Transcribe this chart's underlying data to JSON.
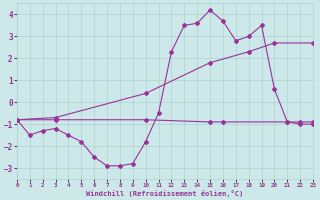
{
  "xlabel": "Windchill (Refroidissement éolien,°C)",
  "background_color": "#cce8e8",
  "grid_color": "#b0d0d0",
  "line_color": "#993399",
  "xlim": [
    0,
    23
  ],
  "ylim": [
    -3.5,
    4.5
  ],
  "yticks": [
    -3,
    -2,
    -1,
    0,
    1,
    2,
    3,
    4
  ],
  "xticks": [
    0,
    1,
    2,
    3,
    4,
    5,
    6,
    7,
    8,
    9,
    10,
    11,
    12,
    13,
    14,
    15,
    16,
    17,
    18,
    19,
    20,
    21,
    22,
    23
  ],
  "curve1_x": [
    0,
    1,
    2,
    3,
    4,
    5,
    6,
    7,
    8,
    9,
    10,
    11,
    12,
    13,
    14,
    15,
    16,
    17,
    18,
    19,
    20,
    21,
    22,
    23
  ],
  "curve1_y": [
    -0.8,
    -1.5,
    -1.3,
    -1.2,
    -1.5,
    -1.8,
    -2.5,
    -2.9,
    -2.9,
    -2.8,
    -1.8,
    -0.5,
    2.3,
    3.5,
    3.6,
    4.2,
    3.7,
    2.8,
    3.0,
    3.5,
    0.6,
    -0.9,
    -1.0,
    -1.0
  ],
  "curve2_x": [
    0,
    3,
    10,
    15,
    18,
    20,
    23
  ],
  "curve2_y": [
    -0.8,
    -0.7,
    0.4,
    1.8,
    2.3,
    2.7,
    2.7
  ],
  "curve3_x": [
    0,
    3,
    10,
    15,
    16,
    21,
    22,
    23
  ],
  "curve3_y": [
    -0.8,
    -0.8,
    -0.8,
    -0.9,
    -0.9,
    -0.9,
    -0.9,
    -0.9
  ]
}
